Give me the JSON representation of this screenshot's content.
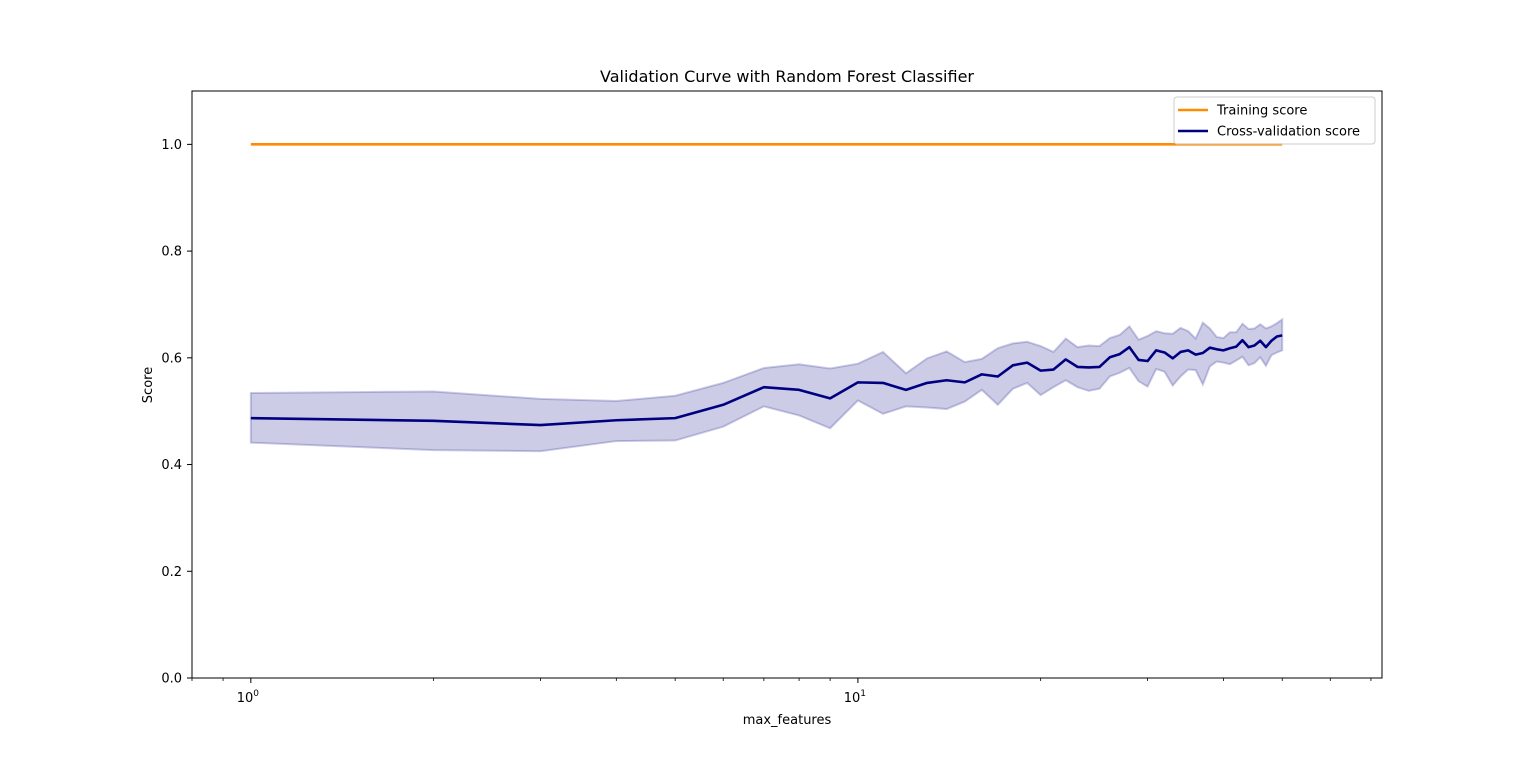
{
  "chart_data": {
    "type": "line",
    "title": "Validation Curve with Random Forest Classifier",
    "xlabel": "max_features",
    "ylabel": "Score",
    "xscale": "log",
    "xlim": [
      0.8,
      73
    ],
    "ylim": [
      0.0,
      1.1
    ],
    "yticks": [
      0.0,
      0.2,
      0.4,
      0.6,
      0.8,
      1.0
    ],
    "ytick_labels": [
      "0.0",
      "0.2",
      "0.4",
      "0.6",
      "0.8",
      "1.0"
    ],
    "xticks_major": [
      1,
      10
    ],
    "xtick_labels": [
      "10",
      "10"
    ],
    "xtick_exponents": [
      "0",
      "1"
    ],
    "x": [
      1,
      2,
      3,
      4,
      5,
      6,
      7,
      8,
      9,
      10,
      11,
      12,
      13,
      14,
      15,
      16,
      17,
      18,
      19,
      20,
      21,
      22,
      23,
      24,
      25,
      26,
      27,
      28,
      29,
      30,
      31,
      32,
      33,
      34,
      35,
      36,
      37,
      38,
      39,
      40,
      41,
      42,
      43,
      44,
      45,
      46,
      47,
      48,
      49,
      50
    ],
    "series": [
      {
        "name": "Training score",
        "color": "#ff8c00",
        "values": [
          1,
          1,
          1,
          1,
          1,
          1,
          1,
          1,
          1,
          1,
          1,
          1,
          1,
          1,
          1,
          1,
          1,
          1,
          1,
          1,
          1,
          1,
          1,
          1,
          1,
          1,
          1,
          1,
          1,
          1,
          1,
          1,
          1,
          1,
          1,
          1,
          1,
          1,
          1,
          1,
          1,
          1,
          1,
          1,
          1,
          1,
          1,
          1,
          1,
          1
        ]
      },
      {
        "name": "Cross-validation score",
        "color": "#000080",
        "values": [
          0.487,
          0.482,
          0.474,
          0.483,
          0.487,
          0.512,
          0.545,
          0.54,
          0.524,
          0.554,
          0.553,
          0.54,
          0.553,
          0.558,
          0.554,
          0.569,
          0.565,
          0.586,
          0.591,
          0.576,
          0.578,
          0.597,
          0.583,
          0.582,
          0.583,
          0.601,
          0.607,
          0.62,
          0.596,
          0.594,
          0.614,
          0.61,
          0.599,
          0.611,
          0.614,
          0.606,
          0.609,
          0.619,
          0.616,
          0.614,
          0.618,
          0.621,
          0.633,
          0.62,
          0.623,
          0.632,
          0.62,
          0.632,
          0.64,
          0.642
        ],
        "band_lower": [
          0.441,
          0.427,
          0.425,
          0.444,
          0.445,
          0.471,
          0.509,
          0.492,
          0.468,
          0.52,
          0.495,
          0.509,
          0.507,
          0.504,
          0.518,
          0.54,
          0.512,
          0.542,
          0.553,
          0.53,
          0.545,
          0.558,
          0.545,
          0.538,
          0.542,
          0.565,
          0.572,
          0.581,
          0.556,
          0.546,
          0.579,
          0.574,
          0.548,
          0.565,
          0.578,
          0.577,
          0.55,
          0.584,
          0.593,
          0.591,
          0.588,
          0.595,
          0.602,
          0.586,
          0.59,
          0.601,
          0.585,
          0.605,
          0.61,
          0.614
        ],
        "band_upper": [
          0.534,
          0.537,
          0.523,
          0.519,
          0.529,
          0.553,
          0.581,
          0.588,
          0.58,
          0.589,
          0.611,
          0.571,
          0.599,
          0.612,
          0.592,
          0.598,
          0.618,
          0.627,
          0.63,
          0.622,
          0.611,
          0.636,
          0.62,
          0.623,
          0.622,
          0.637,
          0.643,
          0.659,
          0.634,
          0.641,
          0.65,
          0.646,
          0.645,
          0.656,
          0.65,
          0.636,
          0.666,
          0.655,
          0.639,
          0.637,
          0.648,
          0.648,
          0.664,
          0.654,
          0.655,
          0.663,
          0.655,
          0.659,
          0.665,
          0.672
        ]
      }
    ],
    "legend_position": "top-right",
    "grid": false
  }
}
